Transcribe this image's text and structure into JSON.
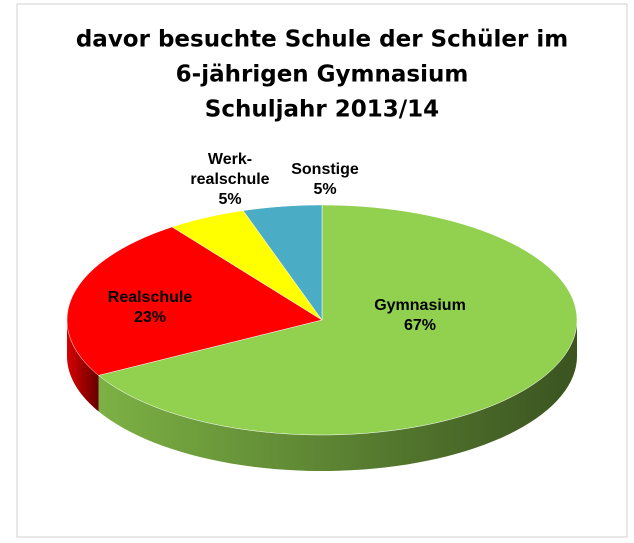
{
  "chart_data": {
    "type": "pie",
    "title": [
      "davor besuchte Schule der Schüler im",
      "6-jährigen Gymnasium",
      "Schuljahr 2013/14"
    ],
    "categories": [
      "Gymnasium",
      "Realschule",
      "Werk-\nrealschule",
      "Sonstige"
    ],
    "values": [
      67,
      23,
      5,
      5
    ],
    "value_labels": [
      "67%",
      "23%",
      "5%",
      "5%"
    ],
    "colors": [
      "#92d050",
      "#ff0000",
      "#ffff00",
      "#4bacc6"
    ]
  }
}
